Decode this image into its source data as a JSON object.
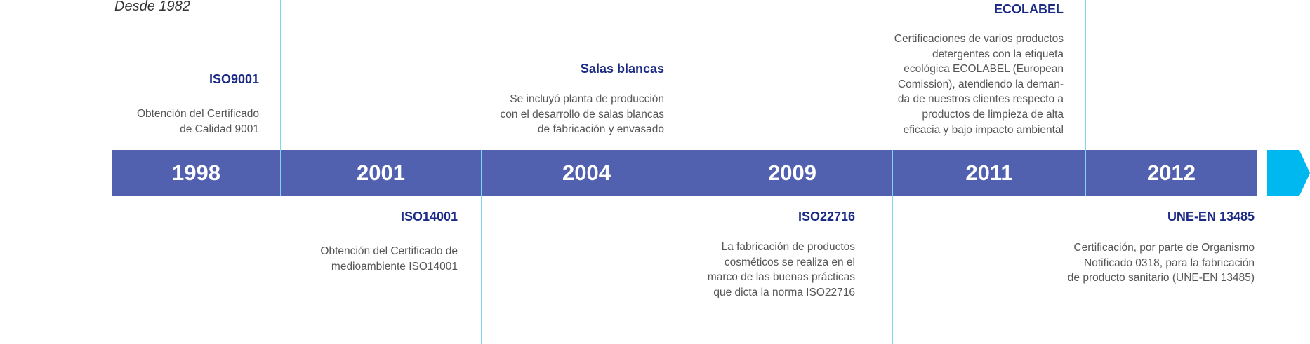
{
  "tagline": "Desde 1982",
  "colors": {
    "bar": "#5161b0",
    "arrow": "#00b8f0",
    "title": "#1b2a84",
    "text": "#555555",
    "divider": "#7fd4ee"
  },
  "years": [
    "1998",
    "2001",
    "2004",
    "2009",
    "2011",
    "2012"
  ],
  "events": {
    "iso9001": {
      "title": "ISO9001",
      "lines": [
        "Obtención del Certificado",
        "de Calidad 9001"
      ]
    },
    "iso14001": {
      "title": "ISO14001",
      "lines": [
        "Obtención del Certificado de",
        "medioambiente ISO14001"
      ]
    },
    "salas": {
      "title": "Salas blancas",
      "lines": [
        "Se incluyó planta de producción",
        "con el desarrollo de salas blancas",
        "de fabricación y envasado"
      ]
    },
    "iso22716": {
      "title": "ISO22716",
      "lines": [
        "La fabricación de productos",
        "cosméticos se realiza en el",
        "marco de las buenas prácticas",
        "que dicta la norma ISO22716"
      ]
    },
    "ecolabel": {
      "title": "ECOLABEL",
      "lines": [
        "Certificaciones de varios productos",
        "detergentes con la etiqueta",
        "ecológica ECOLABEL (European",
        "Comission), atendiendo la deman-",
        "da de nuestros clientes respecto a",
        "productos de limpieza de alta",
        "eficacia y bajo impacto ambiental"
      ]
    },
    "une": {
      "title": "UNE-EN 13485",
      "lines": [
        "Certificación, por parte de Organismo",
        "Notificado 0318, para la fabricación",
        "de producto sanitario (UNE-EN 13485)"
      ]
    }
  }
}
